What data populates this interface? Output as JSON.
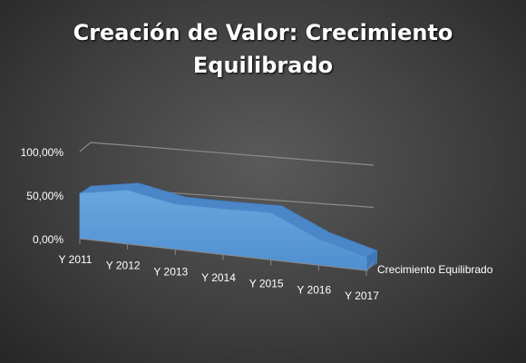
{
  "chart_data": {
    "type": "area",
    "title": "Creación de Valor: Crecimiento Equilibrado",
    "title_lines": [
      "Creación de Valor: Crecimiento",
      "Equilibrado"
    ],
    "categories": [
      "Y 2011",
      "Y 2012",
      "Y 2013",
      "Y 2014",
      "Y 2015",
      "Y 2016",
      "Y 2017"
    ],
    "series": [
      {
        "name": "Crecimiento Equilibrado",
        "values": [
          0.52,
          0.62,
          0.52,
          0.53,
          0.55,
          0.3,
          0.15
        ]
      }
    ],
    "ytick_labels": [
      "0,00%",
      "50,00%",
      "100,00%"
    ],
    "yticks": [
      0,
      0.5,
      1.0
    ],
    "ylim": [
      0,
      1.0
    ],
    "xlabel": "",
    "ylabel": "",
    "grid": true,
    "three_d": true,
    "colors": {
      "series_face": "#5b9bd5",
      "series_top": "#4a86c8",
      "gridline": "#8a8a8a",
      "text": "#ffffff"
    }
  }
}
